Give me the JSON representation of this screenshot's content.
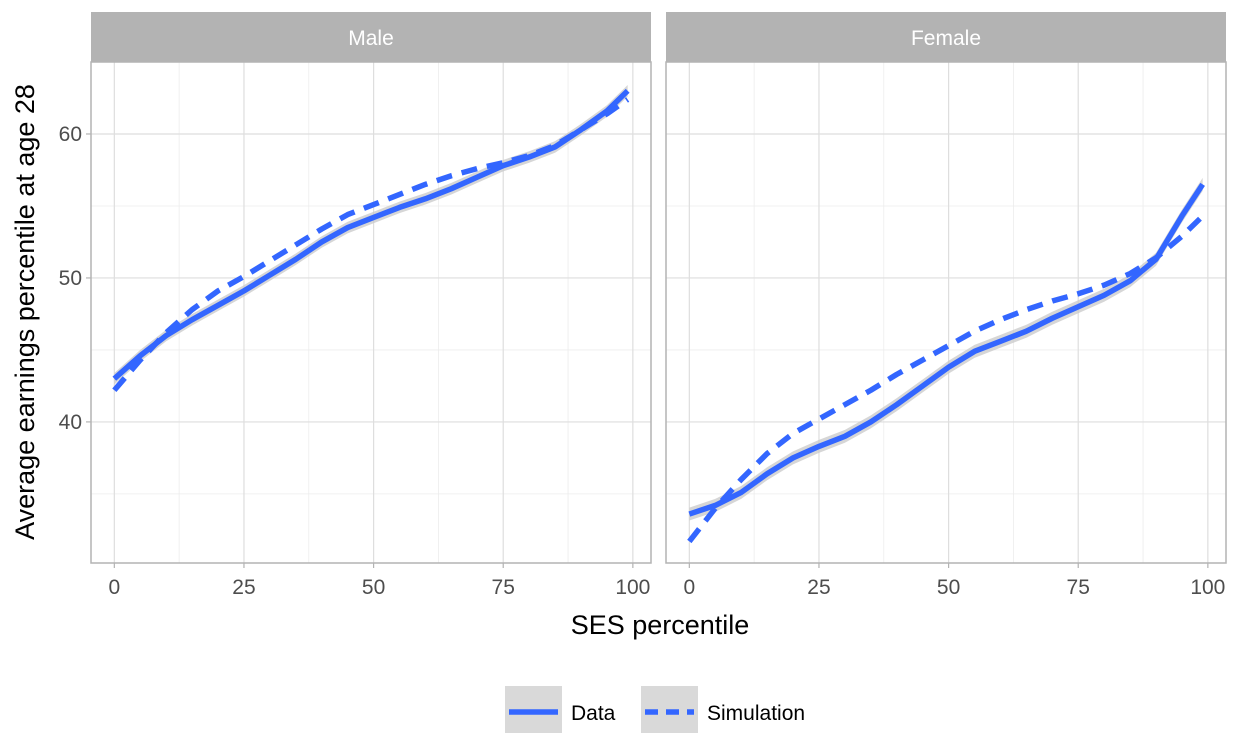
{
  "chart_data": {
    "type": "line",
    "xlabel": "SES percentile",
    "ylabel": "Average earnings percentile at age 28",
    "xlim": [
      -4.5,
      103.5
    ],
    "ylim": [
      30.2,
      65.0
    ],
    "x_ticks": [
      0,
      25,
      50,
      75,
      100
    ],
    "x_tick_labels": [
      "0",
      "25",
      "50",
      "75",
      "100"
    ],
    "y_ticks": [
      40,
      50,
      60
    ],
    "y_tick_labels": [
      "40",
      "50",
      "60"
    ],
    "y_minor_ticks": [
      35,
      45,
      55
    ],
    "grid": true,
    "legend_position": "bottom",
    "legend": [
      {
        "label": "Data",
        "style": "solid"
      },
      {
        "label": "Simulation",
        "style": "dashed"
      }
    ],
    "colors": {
      "line": "#3366FF",
      "ribbon": "#c8c8c8",
      "strip": "#b3b3b3",
      "grid": "#dedede",
      "legend_key": "#d9d9d9"
    },
    "panels": [
      {
        "title": "Male",
        "series": [
          {
            "name": "Data",
            "style": "solid",
            "x": [
              0,
              5,
              10,
              15,
              20,
              25,
              30,
              35,
              40,
              45,
              50,
              55,
              60,
              65,
              70,
              75,
              80,
              85,
              90,
              95,
              99
            ],
            "y": [
              43.0,
              44.6,
              46.0,
              47.1,
              48.1,
              49.1,
              50.2,
              51.3,
              52.5,
              53.5,
              54.2,
              54.9,
              55.5,
              56.2,
              57.0,
              57.8,
              58.4,
              59.1,
              60.3,
              61.6,
              63.0
            ],
            "band": 0.4
          },
          {
            "name": "Simulation",
            "style": "dashed",
            "x": [
              0,
              5,
              10,
              15,
              20,
              25,
              30,
              35,
              40,
              45,
              50,
              55,
              60,
              65,
              70,
              75,
              80,
              85,
              90,
              95,
              99
            ],
            "y": [
              42.2,
              44.3,
              46.2,
              47.8,
              49.1,
              50.1,
              51.2,
              52.3,
              53.4,
              54.4,
              55.1,
              55.8,
              56.5,
              57.1,
              57.6,
              58.0,
              58.5,
              59.2,
              60.3,
              61.4,
              62.4
            ]
          }
        ]
      },
      {
        "title": "Female",
        "series": [
          {
            "name": "Data",
            "style": "solid",
            "x": [
              0,
              5,
              10,
              15,
              20,
              25,
              30,
              35,
              40,
              45,
              50,
              55,
              60,
              65,
              70,
              75,
              80,
              85,
              90,
              95,
              99
            ],
            "y": [
              33.6,
              34.2,
              35.1,
              36.4,
              37.5,
              38.3,
              39.0,
              40.0,
              41.2,
              42.5,
              43.8,
              44.9,
              45.6,
              46.3,
              47.2,
              48.0,
              48.8,
              49.8,
              51.3,
              54.3,
              56.5
            ],
            "band": 0.45
          },
          {
            "name": "Simulation",
            "style": "dashed",
            "x": [
              0,
              5,
              10,
              15,
              20,
              25,
              30,
              35,
              40,
              45,
              50,
              55,
              60,
              65,
              70,
              75,
              80,
              85,
              90,
              95,
              99
            ],
            "y": [
              31.7,
              34.0,
              36.0,
              37.8,
              39.2,
              40.2,
              41.2,
              42.2,
              43.3,
              44.3,
              45.3,
              46.3,
              47.1,
              47.8,
              48.4,
              48.9,
              49.5,
              50.3,
              51.4,
              52.9,
              54.3
            ]
          }
        ]
      }
    ]
  }
}
